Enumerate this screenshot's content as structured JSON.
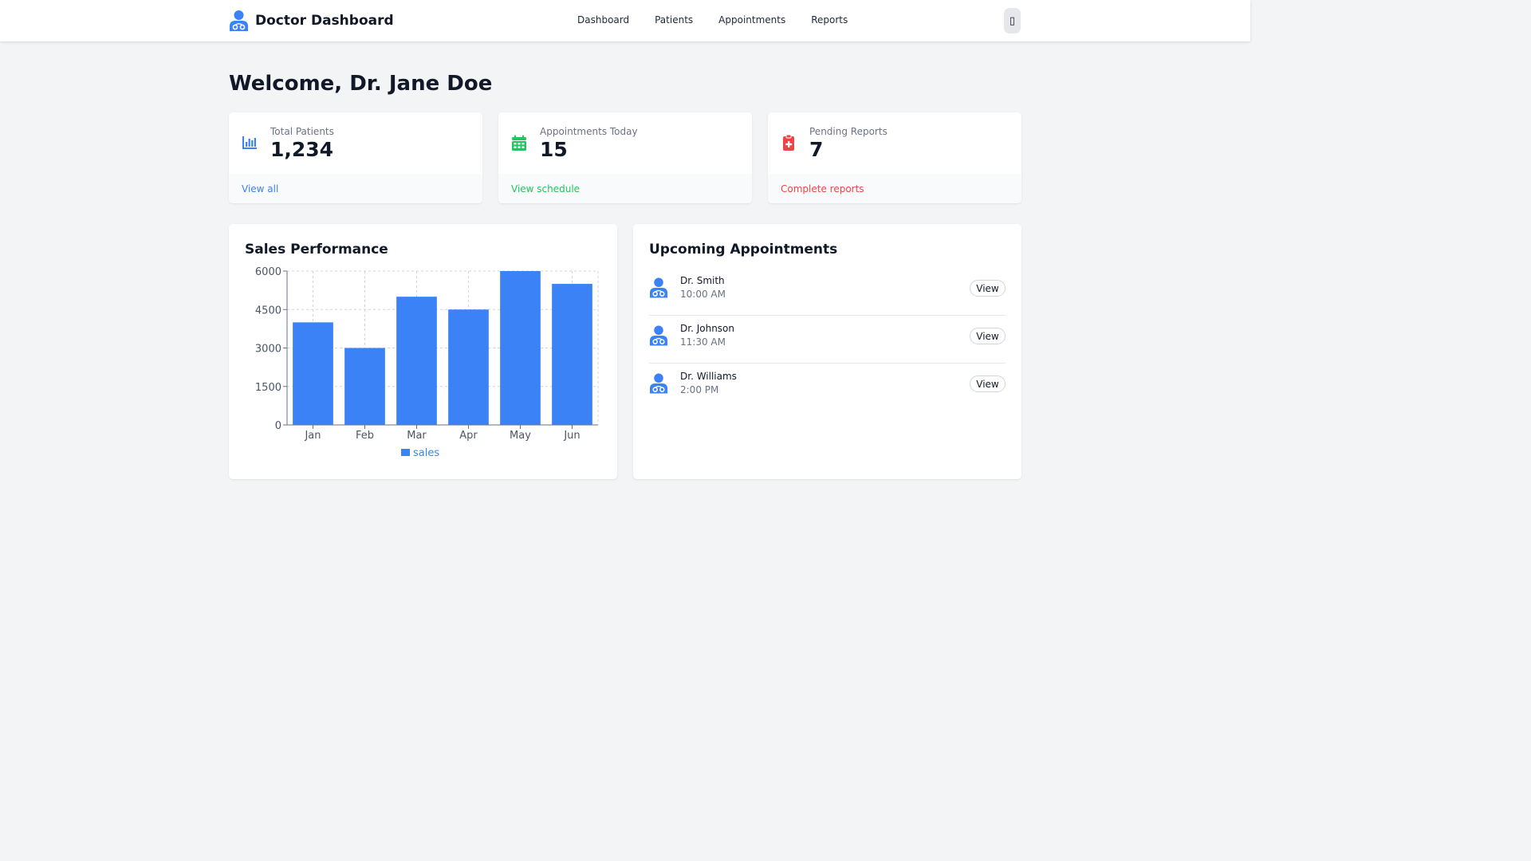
{
  "header": {
    "brand_title": "Doctor Dashboard",
    "brand_icon": "doctor-icon",
    "nav": [
      "Dashboard",
      "Patients",
      "Appointments",
      "Reports"
    ],
    "menu_icon": "menu-icon"
  },
  "welcome": "Welcome, Dr. Jane Doe",
  "stats": [
    {
      "label": "Total Patients",
      "value": "1,234",
      "link": "View all",
      "icon": "bar-chart-icon",
      "color": "#3b82f6"
    },
    {
      "label": "Appointments Today",
      "value": "15",
      "link": "View schedule",
      "icon": "calendar-icon",
      "color": "#22c55e"
    },
    {
      "label": "Pending Reports",
      "value": "7",
      "link": "Complete reports",
      "icon": "medical-clipboard-icon",
      "color": "#ef4444"
    }
  ],
  "sales_panel": {
    "title": "Sales Performance"
  },
  "chart_data": {
    "type": "bar",
    "categories": [
      "Jan",
      "Feb",
      "Mar",
      "Apr",
      "May",
      "Jun"
    ],
    "series": [
      {
        "name": "sales",
        "values": [
          4000,
          3000,
          5000,
          4500,
          6000,
          5500
        ],
        "color": "#3b82f6"
      }
    ],
    "yticks": [
      0,
      1500,
      3000,
      4500,
      6000
    ],
    "ylim": [
      0,
      6000
    ],
    "grid": true,
    "legend": "bottom-center"
  },
  "appointments_panel": {
    "title": "Upcoming Appointments",
    "items": [
      {
        "name": "Dr. Smith",
        "time": "10:00 AM",
        "action": "View"
      },
      {
        "name": "Dr. Johnson",
        "time": "11:30 AM",
        "action": "View"
      },
      {
        "name": "Dr. Williams",
        "time": "2:00 PM",
        "action": "View"
      }
    ]
  }
}
